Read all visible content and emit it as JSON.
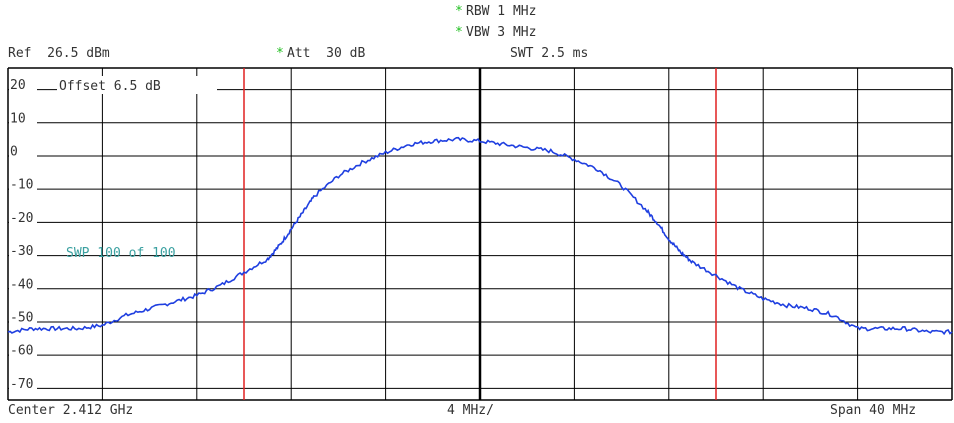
{
  "header": {
    "rbw_star": "*",
    "rbw": "RBW 1 MHz",
    "vbw_star": "*",
    "vbw": "VBW 3 MHz",
    "ref": "Ref  26.5 dBm",
    "att_star": "*",
    "att": "Att  30 dB",
    "swt": "SWT 2.5 ms"
  },
  "overlay": {
    "offset": "Offset  6.5 dB",
    "sweep": "SWP   100 of   100"
  },
  "footer": {
    "center": "Center 2.412 GHz",
    "div": "4 MHz/",
    "span": "Span 40 MHz"
  },
  "colors": {
    "trace": "#1f3fe0",
    "marker": "#e02020",
    "grid": "#000000",
    "sweep_text": "#3aa0a0",
    "star": "#1fbf1f"
  },
  "chart_data": {
    "type": "line",
    "title": "",
    "xlabel": "",
    "ylabel": "",
    "xlim": [
      -20,
      20
    ],
    "ylim": [
      -73.5,
      26.5
    ],
    "x_unit": "MHz offset from center",
    "y_unit": "dBm",
    "y_ticks": [
      20,
      10,
      0,
      -10,
      -20,
      -30,
      -40,
      -50,
      -60,
      -70
    ],
    "y_tick_labels": [
      "20",
      "10",
      "0",
      "-10",
      "-20",
      "-30",
      "-40",
      "-50",
      "-60",
      "-70"
    ],
    "grid": true,
    "vertical_markers": [
      -10,
      10
    ],
    "series": [
      {
        "x": [
          -20,
          -19,
          -18,
          -17,
          -16,
          -15,
          -14,
          -13,
          -12,
          -11,
          -10,
          -9,
          -8.5,
          -8,
          -7.5,
          -7,
          -6,
          -5,
          -4,
          -3,
          -2,
          -1,
          0,
          1,
          2,
          3,
          4,
          5,
          6,
          7,
          7.5,
          8,
          8.5,
          9,
          10,
          11,
          12,
          13,
          14,
          15,
          16,
          17,
          18,
          19,
          20
        ],
        "values": [
          -53,
          -52,
          -52,
          -52,
          -51,
          -48,
          -46,
          -44,
          -42,
          -39,
          -35,
          -31,
          -27,
          -22,
          -17,
          -12,
          -6,
          -2,
          1,
          3.5,
          4.5,
          5,
          4.5,
          3.5,
          2.5,
          1.5,
          -1,
          -4,
          -9,
          -16,
          -20,
          -25,
          -29,
          -32,
          -36,
          -40,
          -43,
          -45,
          -46,
          -48,
          -52,
          -52,
          -52,
          -53,
          -53
        ]
      }
    ]
  }
}
